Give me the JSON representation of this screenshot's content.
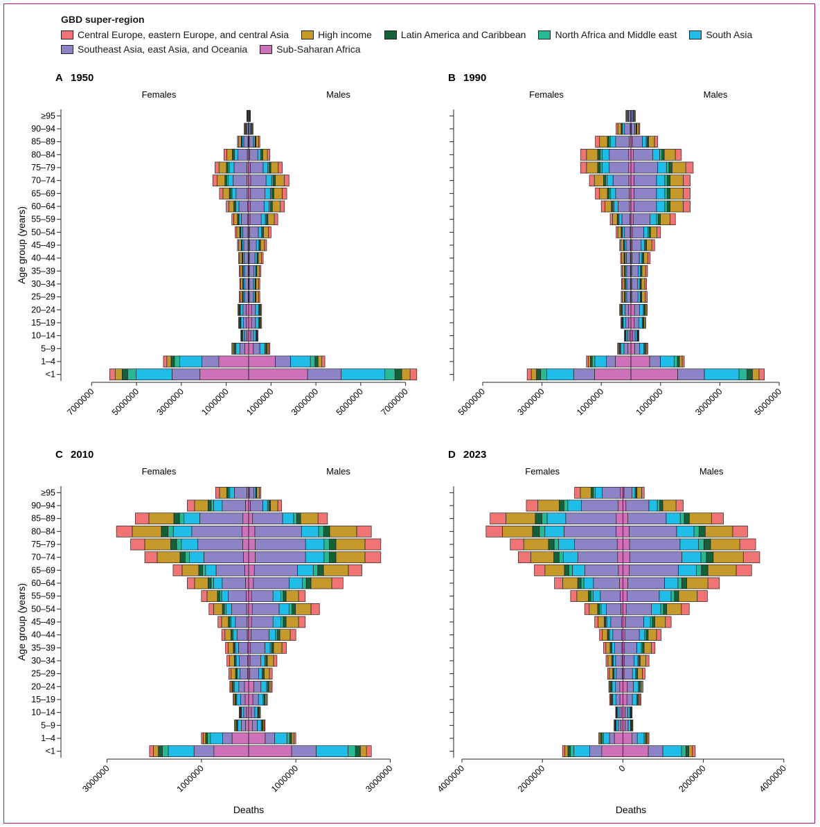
{
  "legend": {
    "title": "GBD super-region",
    "items": [
      {
        "name": "Central Europe, eastern Europe, and central Asia",
        "color": "#f07474"
      },
      {
        "name": "High income",
        "color": "#c59a2b"
      },
      {
        "name": "Latin America and Caribbean",
        "color": "#146038"
      },
      {
        "name": "North Africa and Middle east",
        "color": "#27b894"
      },
      {
        "name": "South Asia",
        "color": "#1fbde8"
      },
      {
        "name": "Southeast Asia, east Asia, and Oceania",
        "color": "#8d84c8"
      },
      {
        "name": "Sub-Saharan Africa",
        "color": "#cf71b8"
      }
    ]
  },
  "chart_data": [
    {
      "type": "bar",
      "panel_letter": "A",
      "title": "1950",
      "left_label": "Females",
      "right_label": "Males",
      "ylabel": "Age group (years)",
      "xlabel": "",
      "xlim": [
        -8000000,
        8000000
      ],
      "tick_values": [
        -7000000,
        -5000000,
        -3000000,
        -1000000,
        1000000,
        3000000,
        5000000,
        7000000
      ],
      "tick_labels": [
        "7000000",
        "5000000",
        "3000000",
        "1000000",
        "1000000",
        "3000000",
        "5000000",
        "7000000"
      ],
      "categories": [
        "≥95",
        "90–94",
        "85–89",
        "80–84",
        "75–79",
        "70–74",
        "65–69",
        "60–64",
        "55–59",
        "50–54",
        "45–49",
        "40–44",
        "35–39",
        "30–34",
        "25–29",
        "20–24",
        "15–19",
        "10–14",
        "5–9",
        "1–4",
        "<1"
      ],
      "female_totals": [
        80000,
        200000,
        500000,
        1100000,
        1500000,
        1600000,
        1300000,
        1000000,
        750000,
        600000,
        500000,
        450000,
        420000,
        400000,
        420000,
        480000,
        450000,
        350000,
        750000,
        3800000,
        6200000
      ],
      "male_totals": [
        80000,
        200000,
        500000,
        950000,
        1500000,
        1800000,
        1700000,
        1600000,
        1300000,
        1000000,
        800000,
        650000,
        550000,
        500000,
        500000,
        580000,
        580000,
        420000,
        950000,
        3400000,
        7500000
      ]
    },
    {
      "type": "bar",
      "panel_letter": "B",
      "title": "1990",
      "left_label": "Females",
      "right_label": "Males",
      "ylabel": "",
      "xlabel": "",
      "xlim": [
        -5700000,
        5700000
      ],
      "tick_values": [
        -5000000,
        -3000000,
        -1000000,
        1000000,
        3000000,
        5000000
      ],
      "tick_labels": [
        "5000000",
        "3000000",
        "1000000",
        "1000000",
        "3000000",
        "5000000"
      ],
      "categories": [
        "≥95",
        "90–94",
        "85–89",
        "80–84",
        "75–79",
        "70–74",
        "65–69",
        "60–64",
        "55–59",
        "50–54",
        "45–49",
        "40–44",
        "35–39",
        "30–34",
        "25–29",
        "20–24",
        "15–19",
        "10–14",
        "5–9",
        "1–4",
        "<1"
      ],
      "female_totals": [
        170000,
        500000,
        1200000,
        1700000,
        1700000,
        1400000,
        1200000,
        1000000,
        700000,
        500000,
        380000,
        350000,
        330000,
        320000,
        330000,
        380000,
        340000,
        220000,
        450000,
        1500000,
        3500000
      ],
      "male_totals": [
        150000,
        300000,
        900000,
        1700000,
        2100000,
        2000000,
        2000000,
        2000000,
        1500000,
        1000000,
        800000,
        650000,
        560000,
        530000,
        550000,
        550000,
        500000,
        270000,
        570000,
        1800000,
        4500000
      ]
    },
    {
      "type": "bar",
      "panel_letter": "C",
      "title": "2010",
      "left_label": "Females",
      "right_label": "Males",
      "ylabel": "Age group (years)",
      "xlabel": "Deaths",
      "xlim": [
        -3800000,
        3800000
      ],
      "tick_values": [
        -3000000,
        -1000000,
        1000000,
        3000000
      ],
      "tick_labels": [
        "3000000",
        "1000000",
        "1000000",
        "3000000"
      ],
      "categories": [
        "≥95",
        "90–94",
        "85–89",
        "80–84",
        "75–79",
        "70–74",
        "65–69",
        "60–64",
        "55–59",
        "50–54",
        "45–49",
        "40–44",
        "35–39",
        "30–34",
        "25–29",
        "20–24",
        "15–19",
        "10–14",
        "5–9",
        "1–4",
        "<1"
      ],
      "female_totals": [
        700000,
        1300000,
        2400000,
        2800000,
        2500000,
        2200000,
        1600000,
        1300000,
        1000000,
        840000,
        650000,
        570000,
        490000,
        460000,
        420000,
        400000,
        330000,
        200000,
        300000,
        1000000,
        2100000
      ],
      "male_totals": [
        260000,
        700000,
        1670000,
        2600000,
        2800000,
        2800000,
        2400000,
        2000000,
        1200000,
        1500000,
        1200000,
        1000000,
        800000,
        600000,
        500000,
        500000,
        400000,
        250000,
        350000,
        1000000,
        2600000
      ]
    },
    {
      "type": "bar",
      "panel_letter": "D",
      "title": "2023",
      "left_label": "Females",
      "right_label": "Males",
      "ylabel": "",
      "xlabel": "Deaths",
      "xlim": [
        -4000000,
        4400000
      ],
      "tick_values": [
        -4000000,
        -2000000,
        0,
        2000000,
        4000000
      ],
      "tick_labels": [
        "4000000",
        "2000000",
        "0",
        "2000000",
        "4000000"
      ],
      "categories": [
        "≥95",
        "90–94",
        "85–89",
        "80–84",
        "75–79",
        "70–74",
        "65–69",
        "60–64",
        "55–59",
        "50–54",
        "45–49",
        "40–44",
        "35–39",
        "30–34",
        "25–29",
        "20–24",
        "15–19",
        "10–14",
        "5–9",
        "1–4",
        "<1"
      ],
      "female_totals": [
        1200000,
        2400000,
        3300000,
        3400000,
        2800000,
        2600000,
        2200000,
        1700000,
        1300000,
        950000,
        700000,
        580000,
        480000,
        420000,
        380000,
        350000,
        330000,
        180000,
        220000,
        600000,
        1500000
      ],
      "male_totals": [
        530000,
        1500000,
        2500000,
        3100000,
        3300000,
        3400000,
        3200000,
        2400000,
        2100000,
        1650000,
        1200000,
        950000,
        800000,
        650000,
        550000,
        500000,
        450000,
        230000,
        250000,
        650000,
        1800000
      ]
    }
  ]
}
